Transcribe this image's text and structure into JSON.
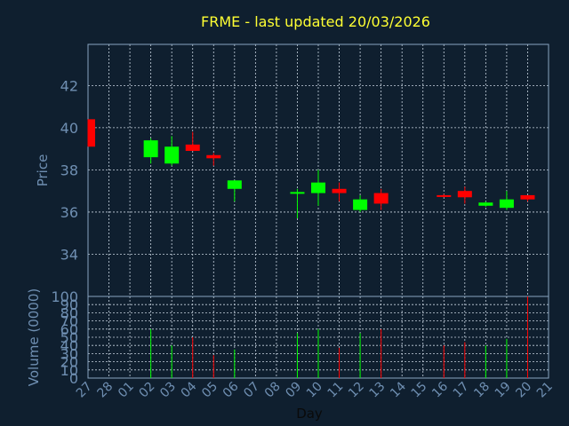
{
  "chart_data": {
    "type": "candlestick",
    "title": "FRME - last updated 20/03/2026",
    "price_panel": {
      "ylabel": "Price",
      "ylim": [
        32.0,
        43.95
      ],
      "yticks": [
        "34",
        "36",
        "38",
        "40",
        "42"
      ],
      "grid": true
    },
    "volume_panel": {
      "ylabel": "Volume (0000)",
      "ylim": [
        0,
        100
      ],
      "yticks": [
        "0",
        "10",
        "20",
        "30",
        "40",
        "50",
        "60",
        "70",
        "80",
        "90",
        "100"
      ],
      "grid": true
    },
    "xlabel": "Day",
    "x_ticks": [
      "27",
      "28",
      "01",
      "02",
      "03",
      "04",
      "05",
      "06",
      "07",
      "08",
      "09",
      "10",
      "11",
      "12",
      "13",
      "14",
      "15",
      "16",
      "17",
      "18",
      "19",
      "20",
      "21"
    ],
    "colors": {
      "up": "#00ff00",
      "down": "#ff0000",
      "background": "#0f1f2f",
      "title": "#ffff33",
      "text": "#6f8fb2"
    },
    "candles": [
      {
        "day": "27",
        "open": 40.4,
        "high": 40.4,
        "low": 39.1,
        "close": 39.1,
        "volume": 0
      },
      {
        "day": "02",
        "open": 38.6,
        "high": 39.5,
        "low": 38.3,
        "close": 39.4,
        "volume": 60
      },
      {
        "day": "03",
        "open": 38.3,
        "high": 39.6,
        "low": 38.2,
        "close": 39.1,
        "volume": 40
      },
      {
        "day": "04",
        "open": 39.2,
        "high": 39.8,
        "low": 38.9,
        "close": 38.9,
        "volume": 50
      },
      {
        "day": "05",
        "open": 38.7,
        "high": 38.8,
        "low": 38.2,
        "close": 38.55,
        "volume": 28
      },
      {
        "day": "06",
        "open": 37.1,
        "high": 37.5,
        "low": 36.5,
        "close": 37.5,
        "volume": 35
      },
      {
        "day": "09",
        "open": 36.9,
        "high": 37.1,
        "low": 35.7,
        "close": 36.95,
        "volume": 55
      },
      {
        "day": "10",
        "open": 36.9,
        "high": 38.0,
        "low": 36.3,
        "close": 37.4,
        "volume": 60
      },
      {
        "day": "11",
        "open": 37.1,
        "high": 37.4,
        "low": 36.5,
        "close": 36.9,
        "volume": 37
      },
      {
        "day": "12",
        "open": 36.1,
        "high": 36.8,
        "low": 36.0,
        "close": 36.6,
        "volume": 55
      },
      {
        "day": "13",
        "open": 36.9,
        "high": 37.1,
        "low": 36.1,
        "close": 36.4,
        "volume": 60
      },
      {
        "day": "16",
        "open": 36.8,
        "high": 36.85,
        "low": 36.7,
        "close": 36.75,
        "volume": 40
      },
      {
        "day": "17",
        "open": 37.0,
        "high": 37.2,
        "low": 36.4,
        "close": 36.7,
        "volume": 44
      },
      {
        "day": "18",
        "open": 36.3,
        "high": 36.5,
        "low": 36.25,
        "close": 36.45,
        "volume": 40
      },
      {
        "day": "19",
        "open": 36.2,
        "high": 37.0,
        "low": 36.1,
        "close": 36.6,
        "volume": 48
      },
      {
        "day": "20",
        "open": 36.8,
        "high": 36.8,
        "low": 36.5,
        "close": 36.6,
        "volume": 100
      }
    ]
  }
}
